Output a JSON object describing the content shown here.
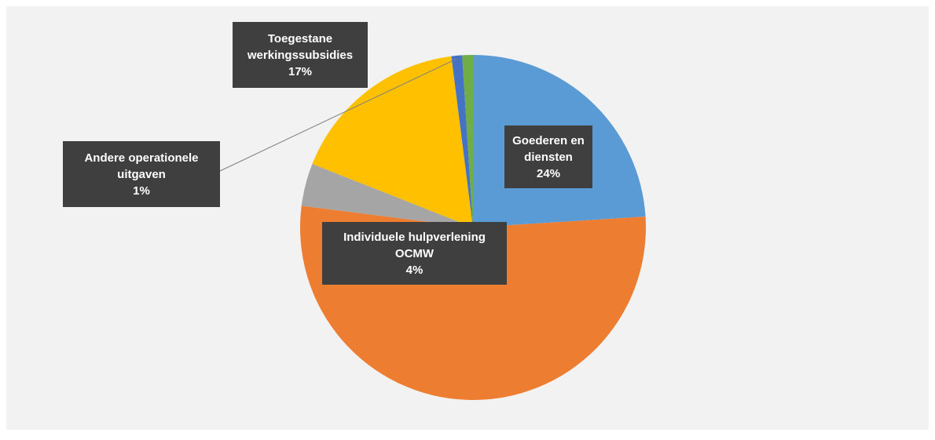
{
  "chart_data": {
    "type": "pie",
    "categories": [
      "Goederen en diensten",
      null,
      "Individuele hulpverlening OCMW",
      "Toegestane werkingssubsidies",
      "Andere operationele uitgaven",
      null
    ],
    "values": [
      24,
      53,
      4,
      17,
      1,
      1
    ],
    "value_labels": [
      "24%",
      null,
      "4%",
      "17%",
      "1%",
      null
    ],
    "colors": [
      "#5b9bd5",
      "#ed7d31",
      "#a5a5a5",
      "#ffc000",
      "#4472c4",
      "#70ad47"
    ]
  }
}
